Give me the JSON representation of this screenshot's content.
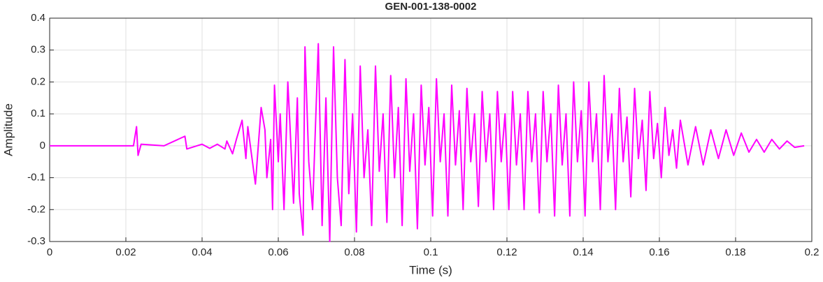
{
  "chart_data": {
    "type": "line",
    "title": "GEN-001-138-0002",
    "x_label": "Time (s)",
    "y_label": "Amplitude",
    "color": "#ff00ff",
    "grid": true,
    "xlim": [
      0,
      0.2
    ],
    "ylim": [
      -0.3,
      0.4
    ],
    "xticks": [
      0,
      0.02,
      0.04,
      0.06,
      0.08,
      0.1,
      0.12,
      0.14,
      0.16,
      0.18,
      0.2
    ],
    "yticks": [
      -0.3,
      -0.2,
      -0.1,
      0,
      0.1,
      0.2,
      0.3,
      0.4
    ],
    "x": [
      0,
      0.01,
      0.022,
      0.0228,
      0.0232,
      0.024,
      0.03,
      0.0355,
      0.036,
      0.04,
      0.042,
      0.044,
      0.046,
      0.0465,
      0.048,
      0.049,
      0.0505,
      0.0515,
      0.052,
      0.053,
      0.054,
      0.0555,
      0.0565,
      0.057,
      0.058,
      0.0585,
      0.059,
      0.06,
      0.0605,
      0.0615,
      0.0625,
      0.063,
      0.064,
      0.065,
      0.0655,
      0.0665,
      0.067,
      0.068,
      0.069,
      0.0705,
      0.0715,
      0.0725,
      0.0735,
      0.0745,
      0.0755,
      0.0765,
      0.0775,
      0.0785,
      0.0795,
      0.0805,
      0.0815,
      0.0825,
      0.0835,
      0.0845,
      0.0855,
      0.0865,
      0.0875,
      0.0885,
      0.0895,
      0.0905,
      0.0915,
      0.0925,
      0.0935,
      0.0945,
      0.0955,
      0.0965,
      0.0975,
      0.0985,
      0.0995,
      0.1005,
      0.1015,
      0.1025,
      0.1035,
      0.1045,
      0.1055,
      0.1065,
      0.1075,
      0.1085,
      0.1095,
      0.1105,
      0.1115,
      0.1125,
      0.1135,
      0.1145,
      0.1155,
      0.1165,
      0.1175,
      0.1185,
      0.1195,
      0.1205,
      0.1215,
      0.1225,
      0.1235,
      0.1245,
      0.1255,
      0.1265,
      0.1275,
      0.1285,
      0.1295,
      0.1305,
      0.1315,
      0.1325,
      0.1335,
      0.1345,
      0.1355,
      0.1365,
      0.1375,
      0.1385,
      0.1395,
      0.1405,
      0.1415,
      0.1425,
      0.1435,
      0.1445,
      0.1455,
      0.1465,
      0.1475,
      0.1485,
      0.1495,
      0.1505,
      0.1515,
      0.1525,
      0.1535,
      0.1545,
      0.1555,
      0.1565,
      0.1575,
      0.1585,
      0.1595,
      0.1605,
      0.1615,
      0.1625,
      0.1635,
      0.1645,
      0.1655,
      0.1675,
      0.1695,
      0.1715,
      0.1735,
      0.1755,
      0.1775,
      0.1795,
      0.1815,
      0.1835,
      0.1855,
      0.1875,
      0.1895,
      0.1915,
      0.1935,
      0.1955,
      0.198
    ],
    "values": [
      0,
      0,
      0,
      0.06,
      -0.03,
      0.005,
      0,
      0.03,
      -0.01,
      0.005,
      -0.008,
      0.005,
      -0.01,
      0.015,
      -0.025,
      0.02,
      0.08,
      -0.04,
      0.06,
      -0.03,
      -0.12,
      0.12,
      0.05,
      -0.1,
      0.02,
      -0.2,
      0.19,
      -0.05,
      0.1,
      -0.2,
      0.2,
      0.08,
      -0.18,
      0.15,
      -0.15,
      -0.28,
      0.31,
      -0.05,
      -0.2,
      0.32,
      -0.25,
      0.15,
      -0.3,
      0.31,
      -0.1,
      -0.25,
      0.27,
      -0.15,
      0.1,
      -0.27,
      0.25,
      -0.1,
      0.05,
      -0.25,
      0.25,
      -0.08,
      0.1,
      -0.24,
      0.22,
      -0.1,
      0.12,
      -0.25,
      0.21,
      -0.08,
      0.1,
      -0.26,
      0.19,
      -0.06,
      0.12,
      -0.22,
      0.21,
      -0.05,
      0.1,
      -0.22,
      0.19,
      -0.06,
      0.11,
      -0.2,
      0.18,
      -0.05,
      0.1,
      -0.19,
      0.17,
      -0.05,
      0.1,
      -0.2,
      0.17,
      -0.05,
      0.1,
      -0.2,
      0.17,
      -0.06,
      0.1,
      -0.2,
      0.17,
      -0.05,
      0.1,
      -0.21,
      0.17,
      -0.05,
      0.1,
      -0.22,
      0.19,
      -0.06,
      0.1,
      -0.22,
      0.2,
      -0.05,
      0.11,
      -0.22,
      0.2,
      -0.05,
      0.1,
      -0.2,
      0.22,
      -0.05,
      0.1,
      -0.2,
      0.18,
      -0.05,
      0.09,
      -0.16,
      0.18,
      -0.04,
      0.08,
      -0.14,
      0.17,
      -0.04,
      0.07,
      -0.1,
      0.12,
      -0.03,
      0.05,
      -0.07,
      0.08,
      -0.06,
      0.06,
      -0.06,
      0.05,
      -0.04,
      0.05,
      -0.03,
      0.04,
      -0.02,
      0.02,
      -0.02,
      0.02,
      -0.01,
      0.015,
      -0.005,
      0
    ]
  }
}
